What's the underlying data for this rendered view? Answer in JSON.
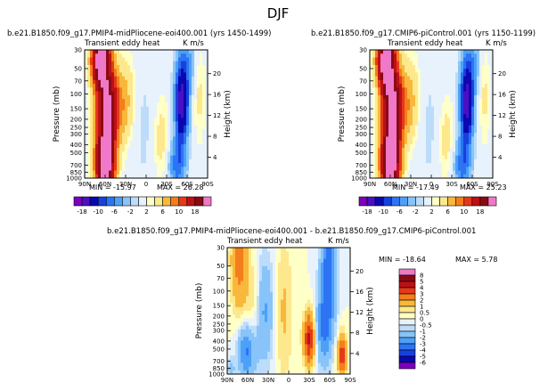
{
  "chart_data": {
    "type": "heatmap",
    "title": "DJF",
    "panels": [
      {
        "id": "left",
        "case_title": "b.e21.B1850.f09_g17.PMIP4-midPliocene-eoi400.001 (yrs 1450-1499)",
        "variable_label": "Transient eddy heat",
        "units_label": "K m/s",
        "ylabel": "Pressure (mb)",
        "ylabel_right": "Height (km)",
        "min_label": "MIN = -15.97",
        "max_label": "MAX = 26.28"
      },
      {
        "id": "right",
        "case_title": "b.e21.B1850.f09_g17.CMIP6-piControl.001 (yrs 1150-1199)",
        "variable_label": "Transient eddy heat",
        "units_label": "K m/s",
        "ylabel": "Pressure (mb)",
        "ylabel_right": "Height (km)",
        "min_label": "MIN = -17.49",
        "max_label": "MAX = 25.23"
      },
      {
        "id": "diff",
        "case_title": "b.e21.B1850.f09_g17.PMIP4-midPliocene-eoi400.001 - b.e21.B1850.f09_g17.CMIP6-piControl.001",
        "variable_label": "Transient eddy heat",
        "units_label": "K m/s",
        "ylabel": "Pressure (mb)",
        "ylabel_right": "Height (km)",
        "min_label": "MIN = -18.64",
        "max_label": "MAX = 5.78"
      }
    ],
    "x_ticks": [
      "90N",
      "60N",
      "30N",
      "0",
      "30S",
      "60S",
      "90S"
    ],
    "x_values": [
      90,
      60,
      30,
      0,
      -30,
      -60,
      -90
    ],
    "y_ticks": [
      "30",
      "50",
      "70",
      "100",
      "150",
      "200",
      "250",
      "300",
      "400",
      "500",
      "700",
      "850",
      "1000"
    ],
    "y_values": [
      30,
      50,
      70,
      100,
      150,
      200,
      250,
      300,
      400,
      500,
      700,
      850,
      1000
    ],
    "height_ticks": [
      "20",
      "16",
      "12",
      "8",
      "4"
    ],
    "height_values": [
      20,
      16,
      12,
      8,
      4
    ],
    "full_colorbar_labels": [
      "-18",
      "-10",
      "-6",
      "-2",
      "2",
      "6",
      "10",
      "18"
    ],
    "full_levels": [
      -18,
      -14,
      -10,
      -8,
      -6,
      -4,
      -2,
      -1,
      1,
      2,
      4,
      6,
      8,
      10,
      14,
      18
    ],
    "full_colors": [
      "#7d00bd",
      "#4b0fc4",
      "#0a08b0",
      "#1840dc",
      "#2c74f4",
      "#4da0f8",
      "#88c4f9",
      "#bcdcf9",
      "#e8f2fc",
      "#ffffc8",
      "#fde88d",
      "#f8b83c",
      "#f47d1c",
      "#e5391a",
      "#bd1016",
      "#8a0a14",
      "#f078c8"
    ],
    "diff_colorbar_labels": [
      "8",
      "5",
      "4",
      "3",
      "2",
      "1",
      "0.5",
      "0",
      "-0.5",
      "-1",
      "-2",
      "-3",
      "-4",
      "-5",
      "-6"
    ],
    "diff_levels": [
      -6,
      -5,
      -4,
      -3,
      -2,
      -1,
      -0.5,
      0,
      0.5,
      1,
      2,
      3,
      4,
      5,
      8
    ],
    "diff_colors": [
      "#7d00bd",
      "#0a08b0",
      "#1840dc",
      "#2c74f4",
      "#4da0f8",
      "#88c4f9",
      "#bcdcf9",
      "#e8f2fc",
      "#ffffc8",
      "#fde88d",
      "#f8b83c",
      "#f47d1c",
      "#e5391a",
      "#bd1016",
      "#8a0a14",
      "#f078c8"
    ]
  }
}
